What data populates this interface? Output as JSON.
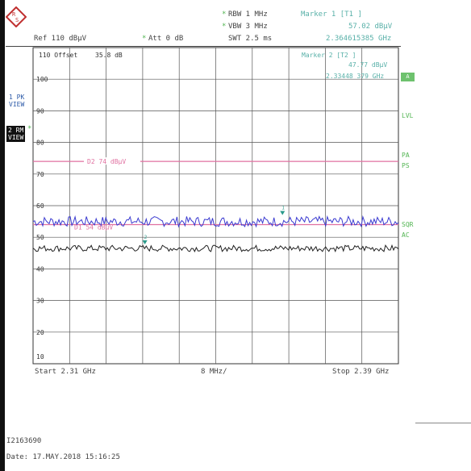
{
  "header": {
    "rbw": "RBW 1 MHz",
    "vbw": "VBW 3 MHz",
    "swt": "SWT 2.5 ms",
    "ref": "Ref  110 dBµV",
    "att": "Att  0 dB",
    "marker1_title": "Marker 1 [T1 ]",
    "marker1_level": "57.02 dBµV",
    "marker1_freq": "2.364615385 GHz",
    "marker2_title": "Marker 2 [T2 ]",
    "marker2_level": "47.77 dBµV",
    "marker2_freq": "2.33448 379 GHz",
    "offset_label": "110 Offset",
    "offset_value": "35.8 dB"
  },
  "sidebar": {
    "trace1_line1": "1 PK",
    "trace1_line2": "VIEW",
    "trace2_line1": "2 RM",
    "trace2_line2": "VIEW"
  },
  "right_labels": {
    "lvl": "LVL",
    "pa": "PA",
    "ps": "PS",
    "sgl": "A",
    "sqr": "SQR",
    "ac": "AC"
  },
  "plot": {
    "y_ticks": [
      "100",
      "90",
      "80",
      "70",
      "60",
      "50",
      "40",
      "30",
      "20",
      "10"
    ],
    "d2_label": "D2 74 dBµV",
    "d1_label": "D1 54 dBµV",
    "start": "Start  2.31 GHz",
    "span": "8 MHz/",
    "stop": "Stop  2.39 GHz"
  },
  "footer": {
    "id": "I2163690",
    "date": "Date: 17.MAY.2018  15:16:25"
  },
  "colors": {
    "pk_trace": "#3a3ad0",
    "rm_trace": "#202020",
    "limit_line": "#e070a0",
    "marker": "#2a9a8a"
  },
  "chart_data": {
    "type": "line",
    "xlim": [
      2.31,
      2.39
    ],
    "ylim": [
      10,
      110
    ],
    "limits": [
      {
        "name": "D2",
        "value": 74
      },
      {
        "name": "D1",
        "value": 54
      }
    ],
    "series": [
      {
        "name": "1 PK",
        "level": 55
      },
      {
        "name": "2 RM",
        "level": 46.5
      }
    ],
    "markers": [
      {
        "name": "1",
        "x": 2.364615385,
        "y": 57.02
      },
      {
        "name": "2",
        "x": 2.33448379,
        "y": 47.77
      }
    ]
  }
}
